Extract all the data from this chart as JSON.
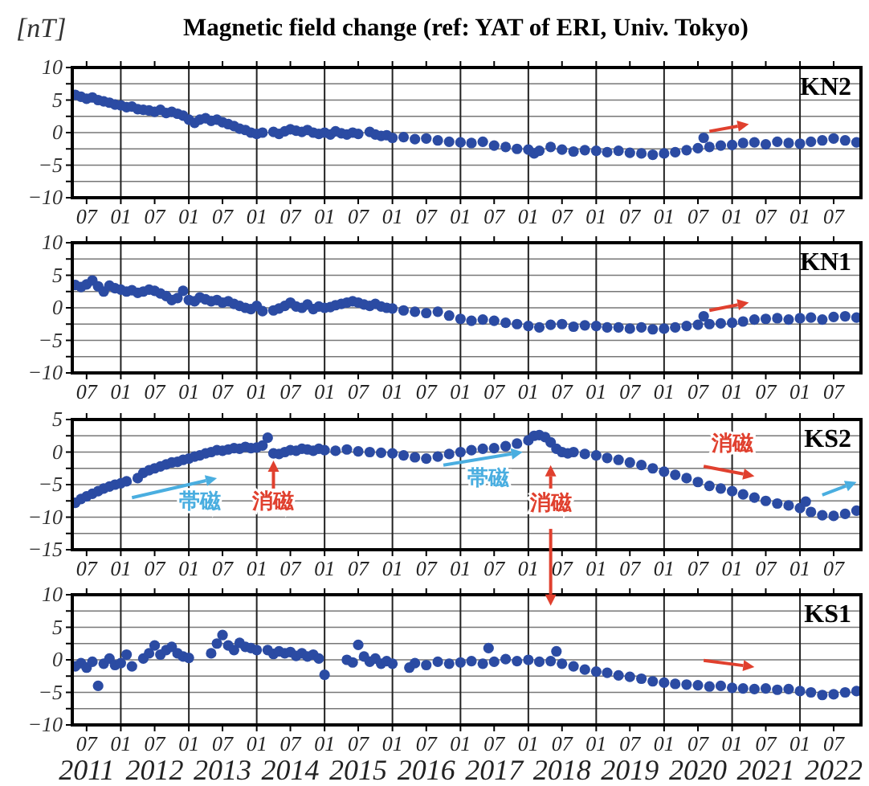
{
  "chart_data": [
    {
      "type": "scatter",
      "title": "Magnetic field change (ref: YAT of ERI, Univ. Tokyo)",
      "ylabel": "[nT]",
      "annotations": [
        "KN2"
      ],
      "grid": true,
      "marker": "circle",
      "xlim": [
        "2011-04-15",
        "2022-11-25"
      ],
      "ylim": [
        -10,
        10
      ],
      "yticks": [
        -10,
        {
          "value": -7.5,
          "label": null
        },
        -5,
        {
          "value": -2.5,
          "label": null
        },
        0,
        {
          "value": 2.5,
          "label": null
        },
        5,
        {
          "value": 7.5,
          "label": null
        },
        10
      ],
      "xticks": [
        {
          "value": "2011-07",
          "label": "07"
        },
        {
          "value": "2012-01",
          "label": "01"
        },
        {
          "value": "2012-07",
          "label": "07"
        },
        {
          "value": "2013-01",
          "label": "01"
        },
        {
          "value": "2013-07",
          "label": "07"
        },
        {
          "value": "2014-01",
          "label": "01"
        },
        {
          "value": "2014-07",
          "label": "07"
        },
        {
          "value": "2015-01",
          "label": "01"
        },
        {
          "value": "2015-07",
          "label": "07"
        },
        {
          "value": "2016-01",
          "label": "01"
        },
        {
          "value": "2016-07",
          "label": "07"
        },
        {
          "value": "2017-01",
          "label": "01"
        },
        {
          "value": "2017-07",
          "label": "07"
        },
        {
          "value": "2018-01",
          "label": "01"
        },
        {
          "value": "2018-07",
          "label": "07"
        },
        {
          "value": "2019-01",
          "label": "01"
        },
        {
          "value": "2019-07",
          "label": "07"
        },
        {
          "value": "2020-01",
          "label": "01"
        },
        {
          "value": "2020-07",
          "label": "07"
        },
        {
          "value": "2021-01",
          "label": "01"
        },
        {
          "value": "2021-07",
          "label": "07"
        },
        {
          "value": "2022-01",
          "label": "01"
        },
        {
          "value": "2022-07",
          "label": "07"
        }
      ],
      "series": [
        {
          "color": "#2b4ba3",
          "x": [
            "2011-05",
            "2011-06",
            "2011-07",
            "2011-08",
            "2011-09",
            "2011-10",
            "2011-11",
            "2011-12",
            "2012-01",
            "2012-02",
            "2012-03",
            "2012-04",
            "2012-05",
            "2012-06",
            "2012-07",
            "2012-08",
            "2012-09",
            "2012-10",
            "2012-11",
            "2012-12",
            "2013-01",
            "2013-02",
            "2013-03",
            "2013-04",
            "2013-05",
            "2013-06",
            "2013-07",
            "2013-08",
            "2013-09",
            "2013-10",
            "2013-11",
            "2013-12",
            "2014-01",
            "2014-02",
            "2014-04",
            "2014-05",
            "2014-06",
            "2014-07",
            "2014-08",
            "2014-09",
            "2014-10",
            "2014-11",
            "2014-12",
            "2015-01",
            "2015-02",
            "2015-03",
            "2015-04",
            "2015-05",
            "2015-06",
            "2015-07",
            "2015-09",
            "2015-10",
            "2015-11",
            "2015-12",
            "2016-01",
            "2016-03",
            "2016-05",
            "2016-07",
            "2016-09",
            "2016-11",
            "2017-01",
            "2017-03",
            "2017-05",
            "2017-07",
            "2017-09",
            "2017-11",
            "2018-01",
            "2018-02",
            "2018-03",
            "2018-05",
            "2018-07",
            "2018-09",
            "2018-11",
            "2019-01",
            "2019-03",
            "2019-05",
            "2019-07",
            "2019-09",
            "2019-11",
            "2020-01",
            "2020-03",
            "2020-05",
            "2020-07",
            "2020-08",
            "2020-09",
            "2020-11",
            "2021-01",
            "2021-03",
            "2021-05",
            "2021-07",
            "2021-09",
            "2021-11",
            "2022-01",
            "2022-03",
            "2022-05",
            "2022-07",
            "2022-09",
            "2022-11"
          ],
          "values": [
            5.8,
            5.5,
            5.2,
            5.4,
            5.0,
            4.8,
            4.6,
            4.3,
            4.2,
            3.9,
            4.0,
            3.6,
            3.5,
            3.4,
            3.2,
            3.5,
            3.0,
            3.2,
            2.9,
            2.6,
            2.0,
            1.5,
            2.0,
            2.2,
            1.8,
            2.0,
            1.6,
            1.3,
            1.0,
            0.6,
            0.4,
            0.0,
            -0.2,
            0.0,
            0.1,
            -0.2,
            0.2,
            0.5,
            0.3,
            0.1,
            0.4,
            0.0,
            -0.2,
            0.0,
            -0.3,
            0.2,
            -0.1,
            -0.3,
            0.0,
            -0.2,
            0.1,
            -0.3,
            -0.5,
            -0.4,
            -0.8,
            -0.7,
            -1.0,
            -0.9,
            -1.2,
            -1.4,
            -1.5,
            -1.6,
            -1.4,
            -2.0,
            -2.2,
            -2.5,
            -2.6,
            -3.2,
            -2.8,
            -2.2,
            -2.6,
            -2.9,
            -2.7,
            -2.8,
            -3.0,
            -2.8,
            -3.1,
            -3.2,
            -3.4,
            -3.2,
            -3.0,
            -2.7,
            -2.4,
            -0.8,
            -2.2,
            -2.0,
            -1.9,
            -1.6,
            -1.5,
            -1.8,
            -1.4,
            -1.6,
            -1.7,
            -1.4,
            -1.2,
            -0.9,
            -1.2,
            -1.5
          ]
        }
      ]
    },
    {
      "type": "scatter",
      "annotations": [
        "KN1"
      ],
      "grid": true,
      "marker": "circle",
      "xlim": [
        "2011-04-15",
        "2022-11-25"
      ],
      "ylim": [
        -10,
        10
      ],
      "yticks": [
        -10,
        {
          "value": -7.5,
          "label": null
        },
        -5,
        {
          "value": -2.5,
          "label": null
        },
        0,
        {
          "value": 2.5,
          "label": null
        },
        5,
        {
          "value": 7.5,
          "label": null
        },
        10
      ],
      "xticks": [
        {
          "value": "2011-07",
          "label": "07"
        },
        {
          "value": "2012-01",
          "label": "01"
        },
        {
          "value": "2012-07",
          "label": "07"
        },
        {
          "value": "2013-01",
          "label": "01"
        },
        {
          "value": "2013-07",
          "label": "07"
        },
        {
          "value": "2014-01",
          "label": "01"
        },
        {
          "value": "2014-07",
          "label": "07"
        },
        {
          "value": "2015-01",
          "label": "01"
        },
        {
          "value": "2015-07",
          "label": "07"
        },
        {
          "value": "2016-01",
          "label": "01"
        },
        {
          "value": "2016-07",
          "label": "07"
        },
        {
          "value": "2017-01",
          "label": "01"
        },
        {
          "value": "2017-07",
          "label": "07"
        },
        {
          "value": "2018-01",
          "label": "01"
        },
        {
          "value": "2018-07",
          "label": "07"
        },
        {
          "value": "2019-01",
          "label": "01"
        },
        {
          "value": "2019-07",
          "label": "07"
        },
        {
          "value": "2020-01",
          "label": "01"
        },
        {
          "value": "2020-07",
          "label": "07"
        },
        {
          "value": "2021-01",
          "label": "01"
        },
        {
          "value": "2021-07",
          "label": "07"
        },
        {
          "value": "2022-01",
          "label": "01"
        },
        {
          "value": "2022-07",
          "label": "07"
        }
      ],
      "series": [
        {
          "color": "#2b4ba3",
          "x": [
            "2011-05",
            "2011-06",
            "2011-07",
            "2011-08",
            "2011-09",
            "2011-10",
            "2011-11",
            "2011-12",
            "2012-01",
            "2012-02",
            "2012-03",
            "2012-04",
            "2012-05",
            "2012-06",
            "2012-07",
            "2012-08",
            "2012-09",
            "2012-10",
            "2012-11",
            "2012-12",
            "2013-01",
            "2013-02",
            "2013-03",
            "2013-04",
            "2013-05",
            "2013-06",
            "2013-07",
            "2013-08",
            "2013-09",
            "2013-10",
            "2013-11",
            "2013-12",
            "2014-01",
            "2014-02",
            "2014-04",
            "2014-05",
            "2014-06",
            "2014-07",
            "2014-08",
            "2014-09",
            "2014-10",
            "2014-11",
            "2014-12",
            "2015-01",
            "2015-02",
            "2015-03",
            "2015-04",
            "2015-05",
            "2015-06",
            "2015-07",
            "2015-08",
            "2015-09",
            "2015-10",
            "2015-11",
            "2015-12",
            "2016-01",
            "2016-03",
            "2016-05",
            "2016-07",
            "2016-09",
            "2016-11",
            "2017-01",
            "2017-03",
            "2017-05",
            "2017-07",
            "2017-09",
            "2017-11",
            "2018-01",
            "2018-03",
            "2018-05",
            "2018-07",
            "2018-09",
            "2018-11",
            "2019-01",
            "2019-03",
            "2019-05",
            "2019-07",
            "2019-09",
            "2019-11",
            "2020-01",
            "2020-03",
            "2020-05",
            "2020-07",
            "2020-08",
            "2020-09",
            "2020-11",
            "2021-01",
            "2021-03",
            "2021-05",
            "2021-07",
            "2021-09",
            "2021-11",
            "2022-01",
            "2022-03",
            "2022-05",
            "2022-07",
            "2022-09",
            "2022-11"
          ],
          "values": [
            3.5,
            3.2,
            3.6,
            4.2,
            3.3,
            2.5,
            3.4,
            3.0,
            2.8,
            2.5,
            2.7,
            2.3,
            2.5,
            2.8,
            2.6,
            2.2,
            1.8,
            1.2,
            1.5,
            2.6,
            1.2,
            1.0,
            1.6,
            1.3,
            1.0,
            1.2,
            0.8,
            1.0,
            0.6,
            0.3,
            0.0,
            -0.2,
            0.3,
            -0.5,
            -0.4,
            -0.1,
            0.3,
            0.8,
            0.2,
            0.0,
            0.5,
            -0.2,
            0.2,
            0.0,
            0.1,
            0.4,
            0.6,
            0.8,
            1.0,
            0.8,
            0.5,
            0.3,
            0.6,
            0.2,
            0.0,
            -0.1,
            -0.4,
            -0.6,
            -0.8,
            -0.6,
            -1.2,
            -1.7,
            -2.0,
            -1.8,
            -2.0,
            -2.3,
            -2.5,
            -2.8,
            -3.0,
            -2.6,
            -2.5,
            -2.9,
            -2.7,
            -2.8,
            -3.0,
            -3.0,
            -3.2,
            -3.0,
            -3.3,
            -3.2,
            -3.0,
            -2.8,
            -2.6,
            -1.3,
            -2.5,
            -2.4,
            -2.3,
            -2.1,
            -1.8,
            -1.7,
            -1.6,
            -1.8,
            -1.6,
            -1.5,
            -1.8,
            -1.4,
            -1.3,
            -1.5
          ]
        }
      ]
    },
    {
      "type": "scatter",
      "annotations": [
        "KS2",
        "帯磁",
        "消磁",
        "帯磁",
        "消磁",
        "消磁"
      ],
      "grid": true,
      "marker": "circle",
      "xlim": [
        "2011-04-15",
        "2022-11-25"
      ],
      "ylim": [
        -15,
        5
      ],
      "yticks": [
        -15,
        {
          "value": -12.5,
          "label": null
        },
        -10,
        {
          "value": -7.5,
          "label": null
        },
        -5,
        {
          "value": -2.5,
          "label": null
        },
        0,
        {
          "value": 2.5,
          "label": null
        },
        5
      ],
      "xticks": [
        {
          "value": "2011-07",
          "label": "07"
        },
        {
          "value": "2012-01",
          "label": "01"
        },
        {
          "value": "2012-07",
          "label": "07"
        },
        {
          "value": "2013-01",
          "label": "01"
        },
        {
          "value": "2013-07",
          "label": "07"
        },
        {
          "value": "2014-01",
          "label": "01"
        },
        {
          "value": "2014-07",
          "label": "07"
        },
        {
          "value": "2015-01",
          "label": "01"
        },
        {
          "value": "2015-07",
          "label": "07"
        },
        {
          "value": "2016-01",
          "label": "01"
        },
        {
          "value": "2016-07",
          "label": "07"
        },
        {
          "value": "2017-01",
          "label": "01"
        },
        {
          "value": "2017-07",
          "label": "07"
        },
        {
          "value": "2018-01",
          "label": "01"
        },
        {
          "value": "2018-07",
          "label": "07"
        },
        {
          "value": "2019-01",
          "label": "01"
        },
        {
          "value": "2019-07",
          "label": "07"
        },
        {
          "value": "2020-01",
          "label": "01"
        },
        {
          "value": "2020-07",
          "label": "07"
        },
        {
          "value": "2021-01",
          "label": "01"
        },
        {
          "value": "2021-07",
          "label": "07"
        },
        {
          "value": "2022-01",
          "label": "01"
        },
        {
          "value": "2022-07",
          "label": "07"
        }
      ],
      "series": [
        {
          "color": "#2b4ba3",
          "x": [
            "2011-05",
            "2011-06",
            "2011-07",
            "2011-08",
            "2011-09",
            "2011-10",
            "2011-11",
            "2011-12",
            "2012-01",
            "2012-02",
            "2012-04",
            "2012-05",
            "2012-06",
            "2012-07",
            "2012-08",
            "2012-09",
            "2012-10",
            "2012-11",
            "2012-12",
            "2013-01",
            "2013-02",
            "2013-03",
            "2013-04",
            "2013-05",
            "2013-06",
            "2013-07",
            "2013-08",
            "2013-09",
            "2013-10",
            "2013-11",
            "2013-12",
            "2014-01",
            "2014-02",
            "2014-03",
            "2014-04",
            "2014-05",
            "2014-06",
            "2014-07",
            "2014-08",
            "2014-09",
            "2014-10",
            "2014-11",
            "2014-12",
            "2015-01",
            "2015-03",
            "2015-05",
            "2015-07",
            "2015-09",
            "2015-11",
            "2016-01",
            "2016-03",
            "2016-05",
            "2016-07",
            "2016-09",
            "2016-11",
            "2017-01",
            "2017-03",
            "2017-05",
            "2017-07",
            "2017-09",
            "2017-11",
            "2018-01",
            "2018-02",
            "2018-03",
            "2018-04",
            "2018-05",
            "2018-06",
            "2018-07",
            "2018-08",
            "2018-09",
            "2018-11",
            "2019-01",
            "2019-03",
            "2019-05",
            "2019-07",
            "2019-09",
            "2019-11",
            "2020-01",
            "2020-03",
            "2020-05",
            "2020-07",
            "2020-09",
            "2020-11",
            "2021-01",
            "2021-03",
            "2021-05",
            "2021-07",
            "2021-09",
            "2021-11",
            "2022-01",
            "2022-02",
            "2022-03",
            "2022-05",
            "2022-07",
            "2022-09",
            "2022-11"
          ],
          "values": [
            -7.8,
            -7.2,
            -6.8,
            -6.4,
            -6.0,
            -5.6,
            -5.3,
            -5.0,
            -4.8,
            -4.5,
            -4.0,
            -3.2,
            -2.8,
            -2.5,
            -2.2,
            -1.9,
            -1.6,
            -1.5,
            -1.2,
            -1.0,
            -0.7,
            -0.5,
            -0.2,
            0.0,
            0.3,
            0.2,
            0.4,
            0.6,
            0.5,
            0.8,
            0.6,
            0.7,
            1.0,
            2.2,
            -0.2,
            -0.3,
            0.0,
            0.3,
            0.2,
            0.5,
            0.4,
            0.2,
            0.5,
            0.3,
            0.2,
            0.4,
            0.1,
            0.0,
            -0.1,
            -0.2,
            -0.5,
            -0.8,
            -1.0,
            -0.7,
            -0.3,
            0.0,
            0.3,
            0.5,
            0.6,
            0.9,
            1.3,
            1.8,
            2.5,
            2.6,
            2.3,
            1.5,
            0.5,
            0.0,
            -0.2,
            0.0,
            -0.3,
            -0.5,
            -0.9,
            -1.2,
            -1.6,
            -2.0,
            -2.5,
            -3.0,
            -3.5,
            -4.0,
            -4.6,
            -5.2,
            -5.6,
            -6.0,
            -6.5,
            -7.0,
            -7.5,
            -7.9,
            -8.2,
            -8.6,
            -7.6,
            -9.2,
            -9.7,
            -9.8,
            -9.5,
            -9.0
          ]
        }
      ]
    },
    {
      "type": "scatter",
      "annotations": [
        "KS1"
      ],
      "grid": true,
      "marker": "circle",
      "xlim": [
        "2011-04-15",
        "2022-11-25"
      ],
      "ylim": [
        -10,
        10
      ],
      "yticks": [
        -10,
        {
          "value": -7.5,
          "label": null
        },
        -5,
        {
          "value": -2.5,
          "label": null
        },
        0,
        {
          "value": 2.5,
          "label": null
        },
        5,
        {
          "value": 7.5,
          "label": null
        },
        10
      ],
      "xticks": [
        {
          "value": "2011-07",
          "label": "07\n2011"
        },
        {
          "value": "2012-01",
          "label": "01"
        },
        {
          "value": "2012-07",
          "label": "07\n2012"
        },
        {
          "value": "2013-01",
          "label": "01"
        },
        {
          "value": "2013-07",
          "label": "07\n2013"
        },
        {
          "value": "2014-01",
          "label": "01"
        },
        {
          "value": "2014-07",
          "label": "07\n2014"
        },
        {
          "value": "2015-01",
          "label": "01"
        },
        {
          "value": "2015-07",
          "label": "07\n2015"
        },
        {
          "value": "2016-01",
          "label": "01"
        },
        {
          "value": "2016-07",
          "label": "07\n2016"
        },
        {
          "value": "2017-01",
          "label": "01"
        },
        {
          "value": "2017-07",
          "label": "07\n2017"
        },
        {
          "value": "2018-01",
          "label": "01"
        },
        {
          "value": "2018-07",
          "label": "07\n2018"
        },
        {
          "value": "2019-01",
          "label": "01"
        },
        {
          "value": "2019-07",
          "label": "07\n2019"
        },
        {
          "value": "2020-01",
          "label": "01"
        },
        {
          "value": "2020-07",
          "label": "07\n2020"
        },
        {
          "value": "2021-01",
          "label": "01"
        },
        {
          "value": "2021-07",
          "label": "07\n2021"
        },
        {
          "value": "2022-01",
          "label": "01"
        },
        {
          "value": "2022-07",
          "label": "07\n2022"
        }
      ],
      "series": [
        {
          "color": "#2b4ba3",
          "x": [
            "2011-05",
            "2011-06",
            "2011-07",
            "2011-08",
            "2011-09",
            "2011-10",
            "2011-11",
            "2011-12",
            "2012-01",
            "2012-02",
            "2012-03",
            "2012-05",
            "2012-06",
            "2012-07",
            "2012-08",
            "2012-09",
            "2012-10",
            "2012-11",
            "2012-12",
            "2013-01",
            "2013-05",
            "2013-06",
            "2013-07",
            "2013-08",
            "2013-09",
            "2013-10",
            "2013-11",
            "2013-12",
            "2014-01",
            "2014-03",
            "2014-04",
            "2014-05",
            "2014-06",
            "2014-07",
            "2014-08",
            "2014-09",
            "2014-10",
            "2014-11",
            "2014-12",
            "2015-01",
            "2015-05",
            "2015-06",
            "2015-07",
            "2015-08",
            "2015-09",
            "2015-10",
            "2015-11",
            "2015-12",
            "2016-01",
            "2016-04",
            "2016-05",
            "2016-07",
            "2016-09",
            "2016-11",
            "2017-01",
            "2017-03",
            "2017-05",
            "2017-06",
            "2017-07",
            "2017-09",
            "2017-11",
            "2018-01",
            "2018-03",
            "2018-05",
            "2018-06",
            "2018-07",
            "2018-09",
            "2018-11",
            "2019-01",
            "2019-03",
            "2019-05",
            "2019-07",
            "2019-09",
            "2019-11",
            "2020-01",
            "2020-03",
            "2020-05",
            "2020-07",
            "2020-09",
            "2020-11",
            "2021-01",
            "2021-03",
            "2021-05",
            "2021-07",
            "2021-09",
            "2021-11",
            "2022-01",
            "2022-03",
            "2022-05",
            "2022-07",
            "2022-09",
            "2022-11"
          ],
          "values": [
            -1.0,
            -0.5,
            -1.2,
            -0.3,
            -4.0,
            -0.6,
            0.2,
            -0.8,
            -0.5,
            0.8,
            -1.0,
            0.2,
            1.0,
            2.2,
            0.8,
            1.5,
            2.0,
            1.0,
            0.5,
            0.3,
            1.0,
            2.5,
            3.8,
            2.2,
            1.5,
            2.6,
            2.0,
            1.8,
            1.5,
            1.5,
            0.9,
            1.3,
            1.0,
            1.2,
            0.6,
            1.0,
            0.5,
            0.8,
            0.2,
            -2.3,
            0.0,
            -0.4,
            2.3,
            0.5,
            -0.3,
            0.2,
            -0.6,
            -0.2,
            -0.6,
            -1.2,
            -0.5,
            -0.8,
            -0.3,
            -0.6,
            -0.4,
            -0.2,
            -0.6,
            1.8,
            -0.3,
            0.1,
            -0.2,
            0.0,
            -0.3,
            -0.2,
            1.3,
            -0.6,
            -1.0,
            -1.5,
            -1.8,
            -2.0,
            -2.4,
            -2.6,
            -2.9,
            -3.3,
            -3.5,
            -3.7,
            -3.8,
            -3.9,
            -4.1,
            -4.0,
            -4.3,
            -4.4,
            -4.5,
            -4.4,
            -4.6,
            -4.5,
            -4.8,
            -5.0,
            -5.4,
            -5.3,
            -5.0,
            -4.8
          ]
        }
      ]
    }
  ]
}
